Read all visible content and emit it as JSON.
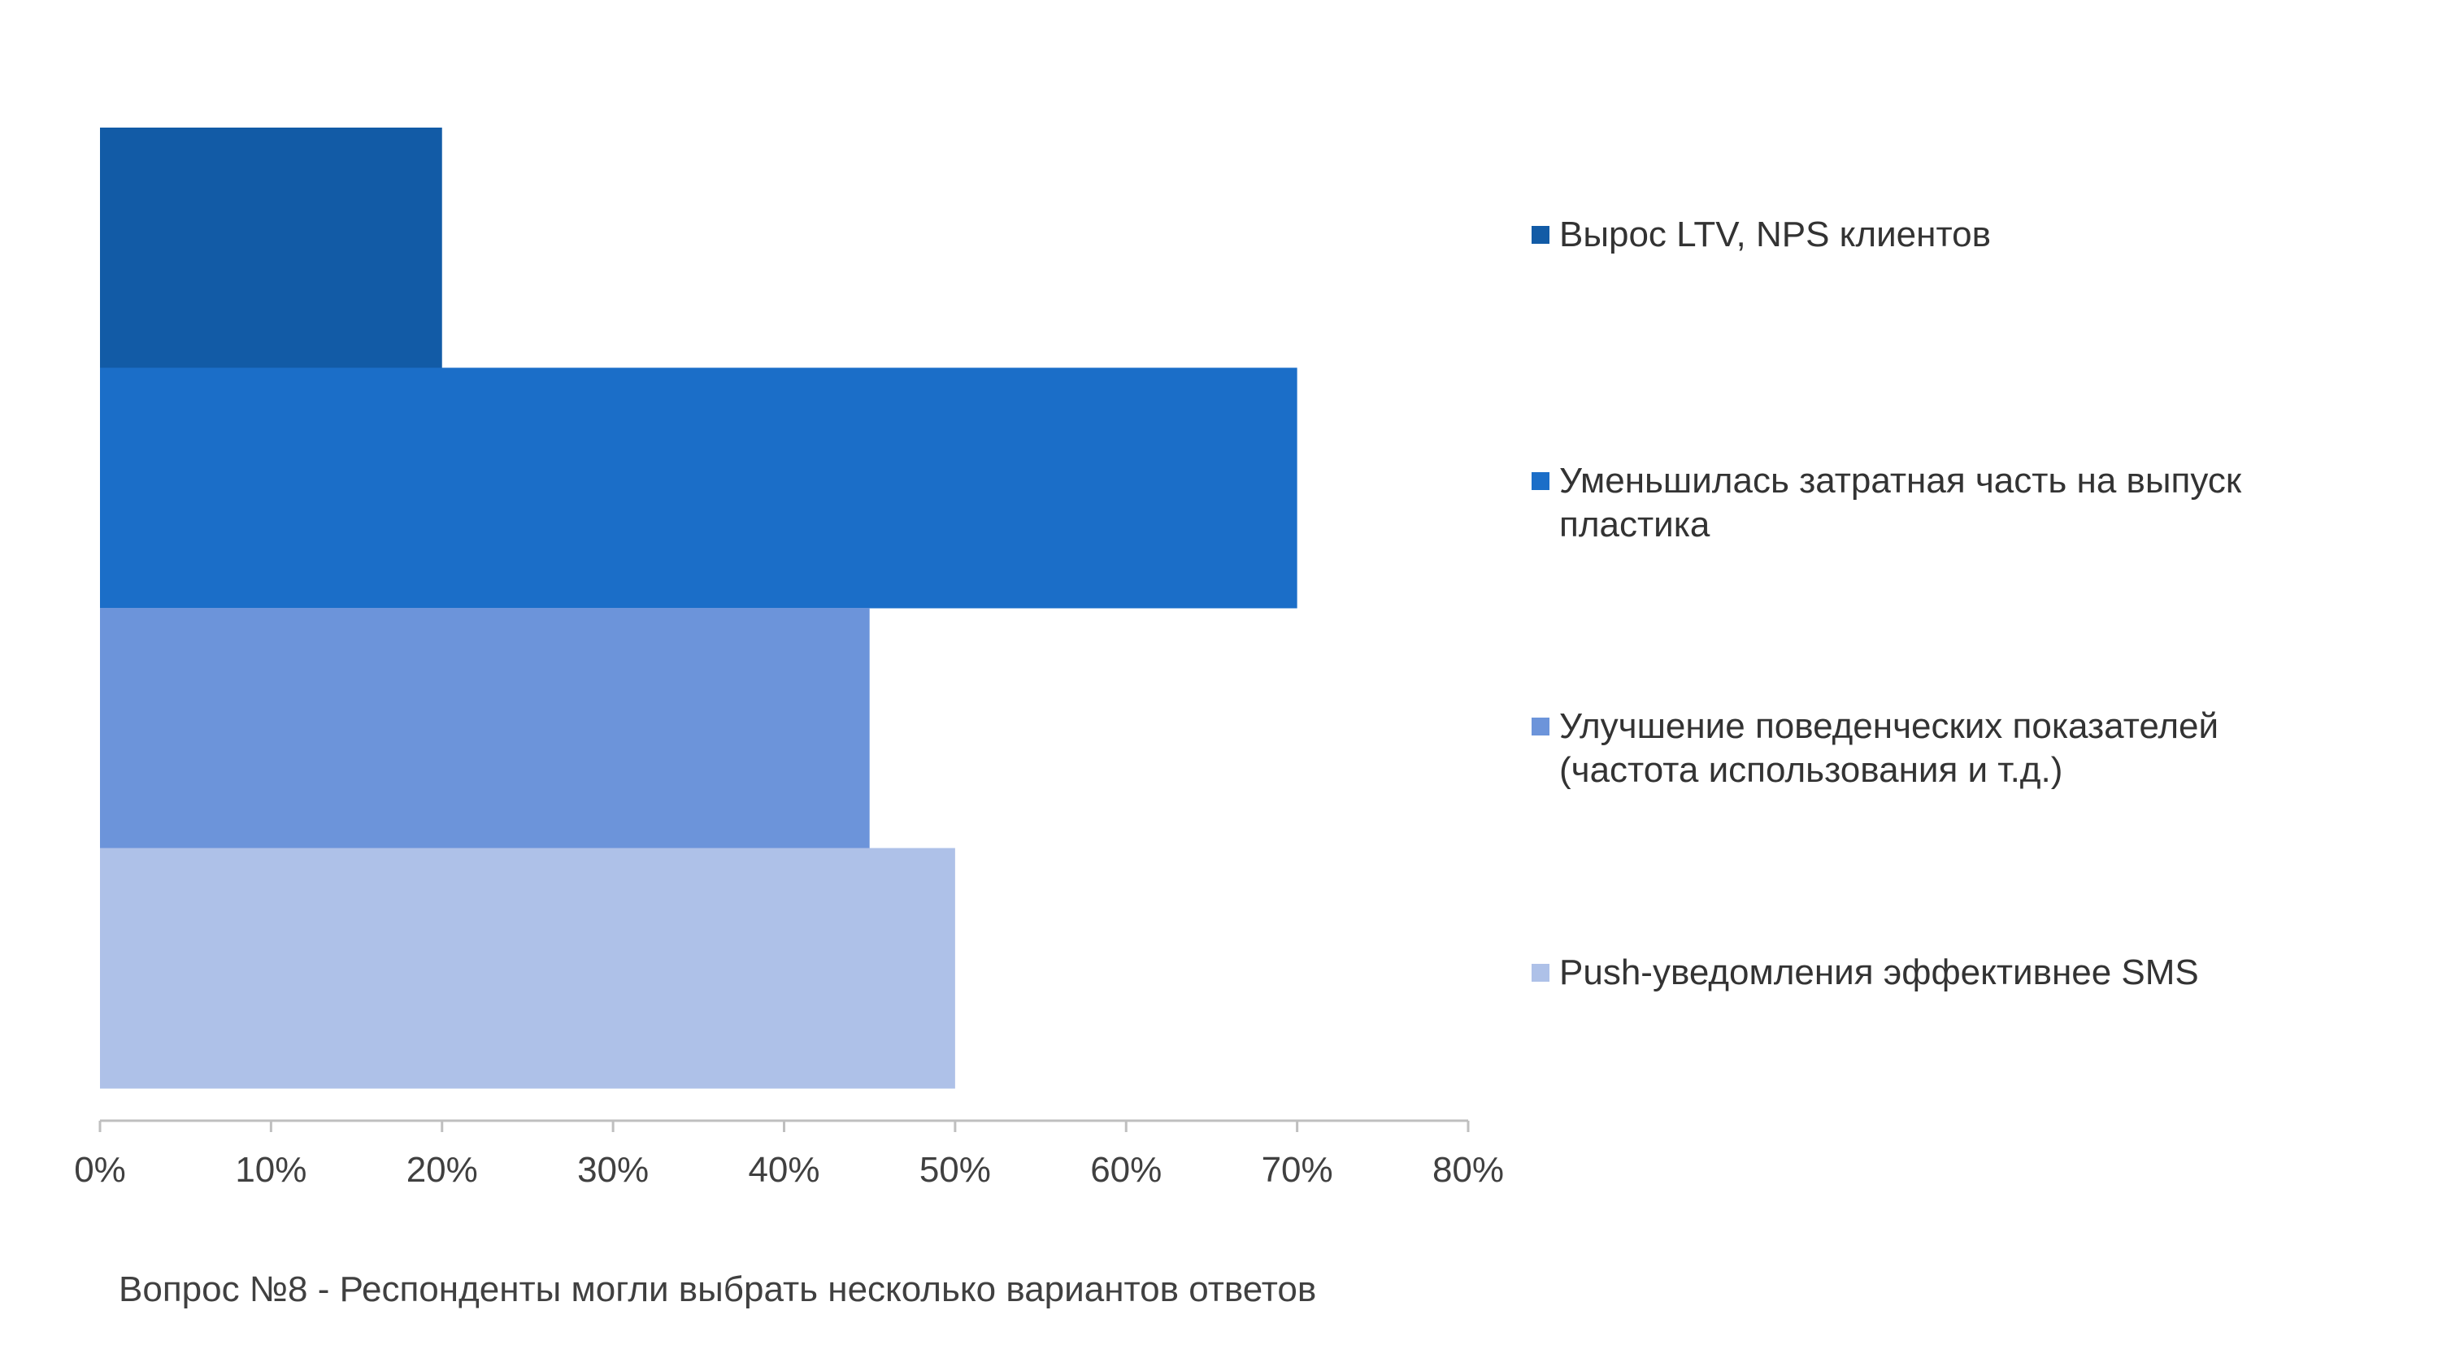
{
  "chart_data": {
    "type": "bar",
    "orientation": "horizontal",
    "title": "",
    "xlabel": "",
    "ylabel": "",
    "xlim": [
      0,
      80
    ],
    "x_ticks": [
      "0%",
      "10%",
      "20%",
      "30%",
      "40%",
      "50%",
      "60%",
      "70%",
      "80%"
    ],
    "grid": false,
    "legend_position": "right",
    "series": [
      {
        "name": "Вырос LTV, NPS клиентов",
        "value": 20,
        "color": "#125BA6"
      },
      {
        "name": "Уменьшилась затратная часть на выпуск пластика",
        "value": 70,
        "color": "#1B6EC8"
      },
      {
        "name": "Улучшение поведенческих показателей (частота использования и т.д.)",
        "value": 45,
        "color": "#6C94DA"
      },
      {
        "name": "Push-уведомления эффективнее SMS",
        "value": 50,
        "color": "#AEC1E8"
      }
    ]
  },
  "footnote": "Вопрос №8 - Респонденты могли выбрать несколько вариантов ответов"
}
